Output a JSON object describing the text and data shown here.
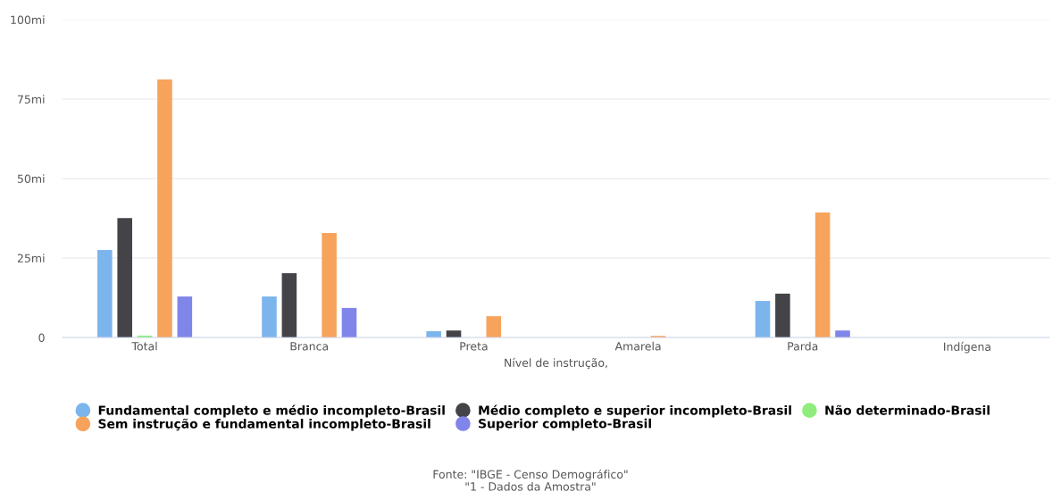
{
  "chart_data": {
    "type": "bar",
    "xlabel": "Nível de instrução,",
    "categories": [
      "Total",
      "Branca",
      "Preta",
      "Amarela",
      "Parda",
      "Indígena"
    ],
    "series": [
      {
        "name": "Fundamental completo e médio incompleto-Brasil",
        "color": "#7cb5ec",
        "values": [
          27.5,
          12.9,
          2.0,
          null,
          11.5,
          null
        ]
      },
      {
        "name": "Médio completo e superior incompleto-Brasil",
        "color": "#434348",
        "values": [
          37.6,
          20.2,
          2.2,
          null,
          13.8,
          null
        ]
      },
      {
        "name": "Não determinado-Brasil",
        "color": "#90ed7d",
        "values": [
          0.6,
          null,
          null,
          null,
          null,
          null
        ]
      },
      {
        "name": "Sem instrução e fundamental incompleto-Brasil",
        "color": "#f7a35c",
        "values": [
          81.2,
          32.9,
          6.7,
          0.5,
          39.3,
          null
        ]
      },
      {
        "name": "Superior completo-Brasil",
        "color": "#8085e9",
        "values": [
          12.9,
          9.3,
          null,
          null,
          2.2,
          null
        ]
      }
    ],
    "ylim": [
      0,
      100
    ],
    "yticks": [
      0,
      {
        "value": 25,
        "label": "25mi"
      },
      {
        "value": 50,
        "label": "50mi"
      },
      {
        "value": 75,
        "label": "75mi"
      },
      {
        "value": 100,
        "label": "100mi"
      }
    ],
    "grid": "y",
    "legend": "bottom",
    "marker": "circle",
    "annotations": [
      "Fonte: \"IBGE - Censo Demográfico\"",
      "\"1 - Dados da Amostra\""
    ]
  }
}
